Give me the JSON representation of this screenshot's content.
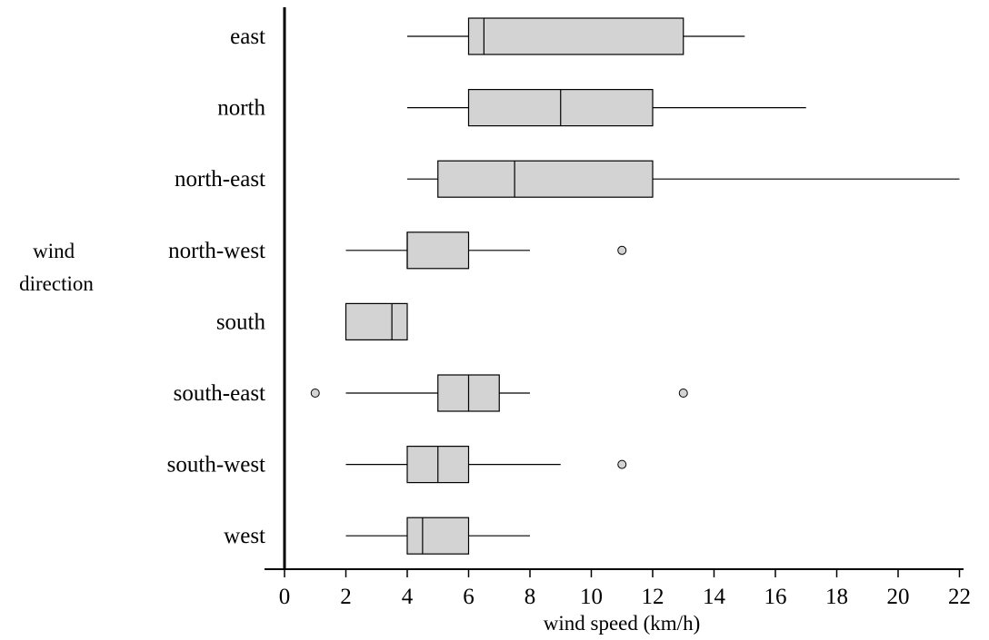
{
  "chart_data": {
    "type": "boxplot",
    "orientation": "horizontal",
    "xlabel": "wind speed (km/h)",
    "ylabel": [
      "wind",
      "direction"
    ],
    "xlim": [
      0,
      22
    ],
    "xticks": [
      0,
      2,
      4,
      6,
      8,
      10,
      12,
      14,
      16,
      18,
      20,
      22
    ],
    "grid": false,
    "box_fill": "#d3d3d3",
    "line_color": "#000000",
    "categories": [
      "east",
      "north",
      "north-east",
      "north-west",
      "south",
      "south-east",
      "south-west",
      "west"
    ],
    "boxes": [
      {
        "label": "east",
        "whisker_low": 4,
        "q1": 6,
        "median": 6.5,
        "q3": 13,
        "whisker_high": 15,
        "outliers": []
      },
      {
        "label": "north",
        "whisker_low": 4,
        "q1": 6,
        "median": 9,
        "q3": 12,
        "whisker_high": 17,
        "outliers": []
      },
      {
        "label": "north-east",
        "whisker_low": 4,
        "q1": 5,
        "median": 7.5,
        "q3": 12,
        "whisker_high": 22,
        "outliers": []
      },
      {
        "label": "north-west",
        "whisker_low": 2,
        "q1": 4,
        "median": 4,
        "q3": 6,
        "whisker_high": 8,
        "outliers": [
          11
        ]
      },
      {
        "label": "south",
        "whisker_low": 2,
        "q1": 2,
        "median": 3.5,
        "q3": 4,
        "whisker_high": 4,
        "outliers": []
      },
      {
        "label": "south-east",
        "whisker_low": 2,
        "q1": 5,
        "median": 6,
        "q3": 7,
        "whisker_high": 8,
        "outliers": [
          1,
          13
        ]
      },
      {
        "label": "south-west",
        "whisker_low": 2,
        "q1": 4,
        "median": 5,
        "q3": 6,
        "whisker_high": 9,
        "outliers": [
          11
        ]
      },
      {
        "label": "west",
        "whisker_low": 2,
        "q1": 4,
        "median": 4.5,
        "q3": 6,
        "whisker_high": 8,
        "outliers": []
      }
    ]
  }
}
